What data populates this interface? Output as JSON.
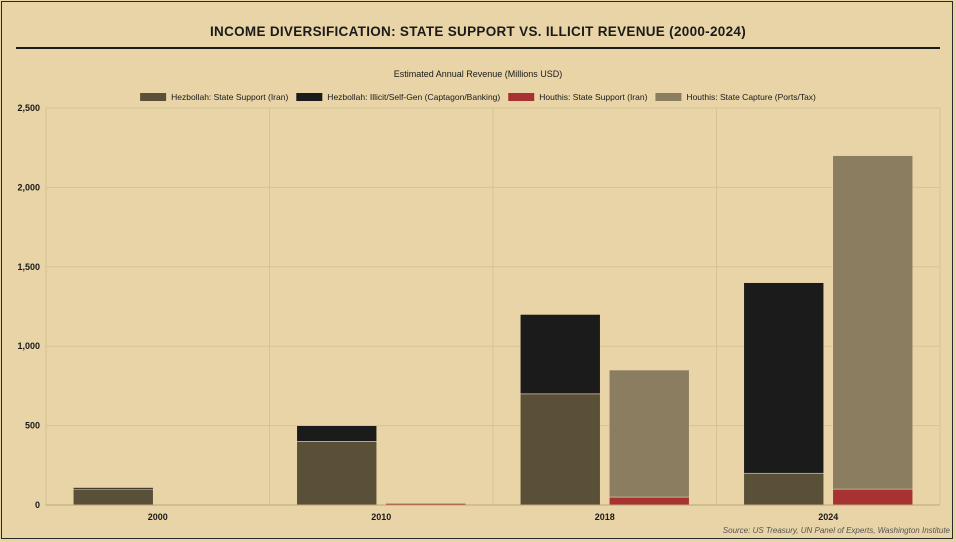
{
  "chart_data": {
    "type": "bar",
    "title": "INCOME DIVERSIFICATION: STATE SUPPORT VS. ILLICIT REVENUE (2000-2024)",
    "subtitle": "Estimated Annual Revenue (Millions USD)",
    "categories": [
      "2000",
      "2010",
      "2018",
      "2024"
    ],
    "stacks": [
      "Hezbollah",
      "Houthis"
    ],
    "series": [
      {
        "name": "Hezbollah: State Support (Iran)",
        "stack": "Hezbollah",
        "color": "#5a4f37",
        "values": [
          100,
          400,
          700,
          200
        ]
      },
      {
        "name": "Hezbollah: Illicit/Self-Gen (Captagon/Banking)",
        "stack": "Hezbollah",
        "color": "#1b1b1b",
        "values": [
          10,
          100,
          500,
          1200
        ]
      },
      {
        "name": "Houthis: State Support (Iran)",
        "stack": "Houthis",
        "color": "#a83232",
        "values": [
          0,
          10,
          50,
          100
        ]
      },
      {
        "name": "Houthis: State Capture (Ports/Tax)",
        "stack": "Houthis",
        "color": "#8b7d5f",
        "values": [
          0,
          0,
          800,
          2100
        ]
      }
    ],
    "ylim": [
      0,
      2500
    ],
    "yticks": [
      "0",
      "500",
      "1,000",
      "1,500",
      "2,000",
      "2,500"
    ],
    "ytick_values": [
      0,
      500,
      1000,
      1500,
      2000,
      2500
    ],
    "legend": "top",
    "grid": true,
    "source": "Source: US Treasury, UN Panel of Experts, Washington Institute"
  }
}
